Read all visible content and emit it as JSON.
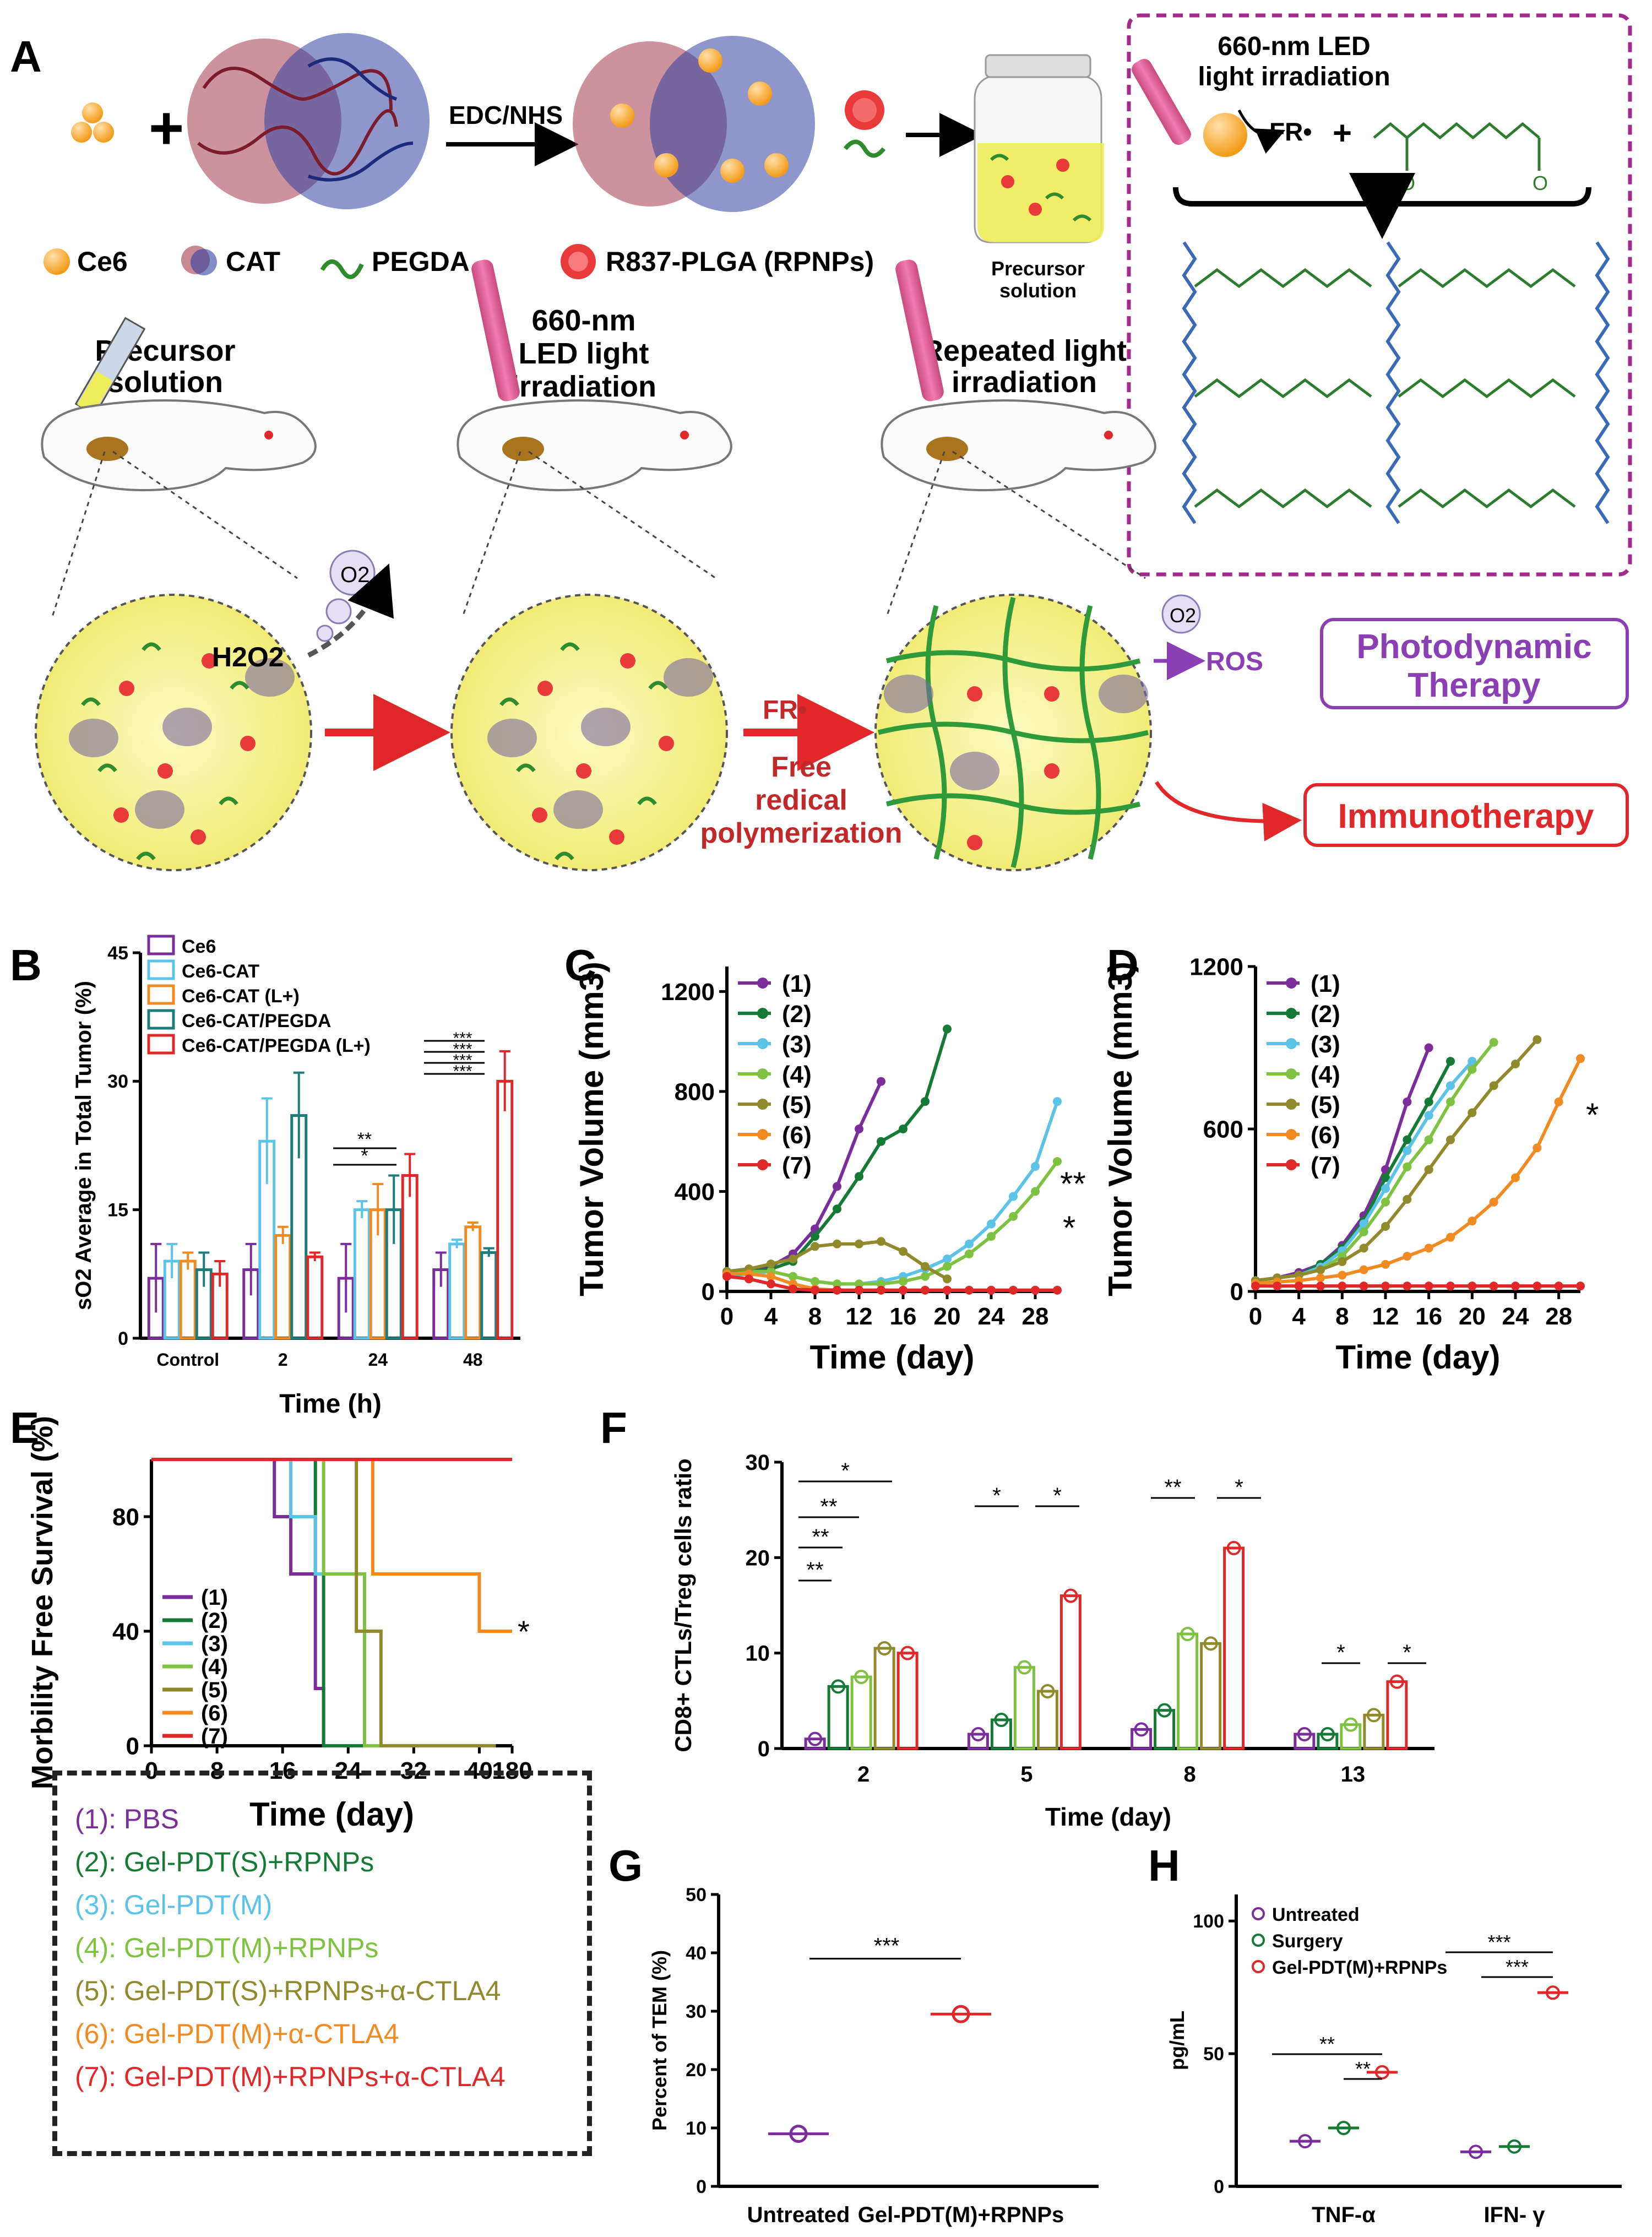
{
  "panels": {
    "A": "A",
    "B": "B",
    "C": "C",
    "D": "D",
    "E": "E",
    "F": "F",
    "G": "G",
    "H": "H"
  },
  "colors": {
    "g1": "#7b2e9b",
    "g2": "#157a35",
    "g3": "#5cc3e8",
    "g4": "#7fc242",
    "g5": "#8f8a2b",
    "g6": "#f28a22",
    "g7": "#e0282a",
    "ce6": "#7b2e9b",
    "cat": "#5cc3e8",
    "catL": "#f28a22",
    "pegda": "#1c7d7a",
    "pegdaL": "#e0282a",
    "magenta": "#a12a8a",
    "green": "#2e8b2e",
    "blue": "#3a6ab5",
    "yellow": "#f4f19a"
  },
  "panelA": {
    "reagent": "EDC/NHS",
    "legend": {
      "ce6": "Ce6",
      "cat": "CAT",
      "pegda": "PEGDA",
      "rpnps": "R837-PLGA (RPNPs)"
    },
    "precursor_vial": "Precursor solution",
    "step1": "Precursor solution",
    "step2": "660-nm LED light irradiation",
    "step3": "Repeated light irradiation",
    "inset_title": "660-nm LED light irradiation",
    "fr": "FR•",
    "h2o2": "H2O2",
    "o2": "O2",
    "polymerization": "Free redical polymerization",
    "ros": "ROS",
    "pdt": "Photodynamic Therapy",
    "immuno": "Immunotherapy"
  },
  "chart_data": [
    {
      "id": "B",
      "type": "bar",
      "ylabel": "sO2 Average in Total Tumor (%)",
      "xlabel": "Time (h)",
      "categories": [
        "Control",
        "2",
        "24",
        "48"
      ],
      "ylim": [
        0,
        45
      ],
      "yticks": [
        0,
        15,
        30,
        45
      ],
      "series": [
        {
          "name": "Ce6",
          "values": [
            7,
            8,
            7,
            8
          ],
          "err": [
            4,
            3,
            4,
            2
          ]
        },
        {
          "name": "Ce6-CAT",
          "values": [
            9,
            23,
            15,
            11
          ],
          "err": [
            2,
            5,
            1,
            0.5
          ]
        },
        {
          "name": "Ce6-CAT (L+)",
          "values": [
            9,
            12,
            15,
            13
          ],
          "err": [
            1,
            1,
            3,
            0.5
          ]
        },
        {
          "name": "Ce6-CAT/PEGDA",
          "values": [
            8,
            26,
            15,
            10
          ],
          "err": [
            2,
            5,
            4,
            0.5
          ]
        },
        {
          "name": "Ce6-CAT/PEGDA (L+)",
          "values": [
            7.5,
            9.5,
            19,
            30
          ],
          "err": [
            1.5,
            0.5,
            2.5,
            3.5
          ]
        }
      ],
      "sig": [
        "**",
        "*",
        "***",
        "***",
        "***",
        "***"
      ]
    },
    {
      "id": "C",
      "type": "line",
      "title": "",
      "ylabel": "Tumor Volume (mm3)",
      "xlabel": "Time (day)",
      "xlim": [
        0,
        30
      ],
      "ylim": [
        0,
        1300
      ],
      "xticks": [
        0,
        4,
        8,
        12,
        16,
        20,
        24,
        28
      ],
      "yticks": [
        0,
        400,
        800,
        1200
      ],
      "series": [
        {
          "name": "(1)",
          "x": [
            0,
            2,
            4,
            6,
            8,
            10,
            12,
            14
          ],
          "y": [
            80,
            90,
            100,
            150,
            250,
            420,
            650,
            840
          ]
        },
        {
          "name": "(2)",
          "x": [
            0,
            2,
            4,
            6,
            8,
            10,
            12,
            14,
            16,
            18,
            20
          ],
          "y": [
            70,
            80,
            90,
            120,
            220,
            330,
            460,
            600,
            650,
            760,
            1050
          ]
        },
        {
          "name": "(3)",
          "x": [
            0,
            2,
            4,
            6,
            8,
            10,
            12,
            14,
            16,
            18,
            20,
            22,
            24,
            26,
            28,
            30
          ],
          "y": [
            60,
            70,
            80,
            60,
            40,
            30,
            30,
            40,
            60,
            90,
            130,
            190,
            270,
            380,
            500,
            760
          ]
        },
        {
          "name": "(4)",
          "x": [
            0,
            2,
            4,
            6,
            8,
            10,
            12,
            14,
            16,
            18,
            20,
            22,
            24,
            26,
            28,
            30
          ],
          "y": [
            80,
            80,
            80,
            60,
            40,
            30,
            30,
            30,
            40,
            60,
            100,
            150,
            220,
            300,
            400,
            520
          ]
        },
        {
          "name": "(5)",
          "x": [
            0,
            2,
            4,
            6,
            8,
            10,
            12,
            14,
            16,
            18,
            20
          ],
          "y": [
            80,
            90,
            110,
            130,
            180,
            190,
            190,
            200,
            160,
            100,
            50
          ]
        },
        {
          "name": "(6)",
          "x": [
            0,
            2,
            4,
            6,
            8,
            10,
            12,
            14,
            16,
            18,
            20,
            22,
            24,
            26,
            28,
            30
          ],
          "y": [
            70,
            70,
            60,
            30,
            10,
            5,
            5,
            5,
            5,
            5,
            5,
            5,
            5,
            5,
            5,
            5
          ]
        },
        {
          "name": "(7)",
          "x": [
            0,
            2,
            4,
            6,
            8,
            10,
            12,
            14,
            16,
            18,
            20,
            22,
            24,
            26,
            28,
            30
          ],
          "y": [
            60,
            50,
            30,
            10,
            5,
            5,
            5,
            5,
            5,
            5,
            5,
            5,
            5,
            5,
            5,
            5
          ]
        }
      ],
      "sig": [
        "**",
        "*"
      ]
    },
    {
      "id": "D",
      "type": "line",
      "ylabel": "Tumor Volume (mm3)",
      "xlabel": "Time (day)",
      "xlim": [
        0,
        30
      ],
      "ylim": [
        0,
        1200
      ],
      "xticks": [
        0,
        4,
        8,
        12,
        16,
        20,
        24,
        28
      ],
      "yticks": [
        0,
        600,
        1200
      ],
      "series": [
        {
          "name": "(1)",
          "x": [
            0,
            2,
            4,
            6,
            8,
            10,
            12,
            14,
            16
          ],
          "y": [
            40,
            50,
            70,
            100,
            170,
            280,
            450,
            700,
            900
          ]
        },
        {
          "name": "(2)",
          "x": [
            0,
            2,
            4,
            6,
            8,
            10,
            12,
            14,
            16,
            18
          ],
          "y": [
            40,
            50,
            60,
            100,
            160,
            260,
            420,
            560,
            700,
            850
          ]
        },
        {
          "name": "(3)",
          "x": [
            0,
            2,
            4,
            6,
            8,
            10,
            12,
            14,
            16,
            18,
            20
          ],
          "y": [
            40,
            50,
            60,
            90,
            150,
            250,
            380,
            520,
            650,
            760,
            850
          ]
        },
        {
          "name": "(4)",
          "x": [
            0,
            2,
            4,
            6,
            8,
            10,
            12,
            14,
            16,
            18,
            20,
            22
          ],
          "y": [
            40,
            50,
            60,
            80,
            130,
            220,
            330,
            460,
            560,
            700,
            820,
            920
          ]
        },
        {
          "name": "(5)",
          "x": [
            0,
            2,
            4,
            6,
            8,
            10,
            12,
            14,
            16,
            18,
            20,
            22,
            24,
            26
          ],
          "y": [
            40,
            50,
            60,
            80,
            110,
            160,
            240,
            340,
            450,
            560,
            660,
            760,
            840,
            930
          ]
        },
        {
          "name": "(6)",
          "x": [
            0,
            2,
            4,
            6,
            8,
            10,
            12,
            14,
            16,
            18,
            20,
            22,
            24,
            26,
            28,
            30
          ],
          "y": [
            30,
            35,
            40,
            50,
            60,
            80,
            100,
            130,
            160,
            200,
            260,
            330,
            420,
            530,
            700,
            860
          ]
        },
        {
          "name": "(7)",
          "x": [
            0,
            2,
            4,
            6,
            8,
            10,
            12,
            14,
            16,
            18,
            20,
            22,
            24,
            26,
            28,
            30
          ],
          "y": [
            20,
            20,
            20,
            20,
            20,
            20,
            20,
            20,
            20,
            20,
            20,
            20,
            20,
            20,
            20,
            20
          ]
        }
      ],
      "sig": [
        "*"
      ]
    },
    {
      "id": "E",
      "type": "line",
      "ylabel": "Morbility Free Survival (%)",
      "xlabel": "Time (day)",
      "xlim": [
        0,
        44
      ],
      "ylim": [
        0,
        100
      ],
      "xticks": [
        "0",
        "8",
        "16",
        "24",
        "32",
        "40",
        "180"
      ],
      "yticks": [
        0,
        40,
        80
      ],
      "series": [
        {
          "name": "(1)",
          "x": [
            0,
            15,
            15,
            17,
            17,
            20,
            20,
            21,
            21,
            42
          ],
          "y": [
            100,
            100,
            80,
            80,
            60,
            60,
            20,
            20,
            0,
            0
          ]
        },
        {
          "name": "(2)",
          "x": [
            0,
            20,
            20,
            21,
            21,
            42
          ],
          "y": [
            100,
            100,
            60,
            60,
            0,
            0
          ]
        },
        {
          "name": "(3)",
          "x": [
            0,
            17,
            17,
            20,
            20,
            26,
            26,
            42
          ],
          "y": [
            100,
            100,
            80,
            80,
            60,
            60,
            0,
            0
          ]
        },
        {
          "name": "(4)",
          "x": [
            0,
            21,
            21,
            26,
            26,
            42
          ],
          "y": [
            100,
            100,
            60,
            60,
            0,
            0
          ]
        },
        {
          "name": "(5)",
          "x": [
            0,
            25,
            25,
            28,
            28,
            42
          ],
          "y": [
            100,
            100,
            40,
            40,
            0,
            0
          ]
        },
        {
          "name": "(6)",
          "x": [
            0,
            27,
            27,
            40,
            40,
            44
          ],
          "y": [
            100,
            100,
            60,
            60,
            40,
            40
          ]
        },
        {
          "name": "(7)",
          "x": [
            0,
            44
          ],
          "y": [
            100,
            100
          ]
        }
      ],
      "sig": [
        "*"
      ]
    },
    {
      "id": "F",
      "type": "bar",
      "ylabel": "CD8+ CTLs/Treg cells ratio",
      "xlabel": "Time (day)",
      "categories": [
        "2",
        "5",
        "8",
        "13"
      ],
      "ylim": [
        0,
        30
      ],
      "yticks": [
        0,
        10,
        20,
        30
      ],
      "series": [
        {
          "name": "(1)",
          "values": [
            1,
            1.5,
            2,
            1.5
          ]
        },
        {
          "name": "(2)",
          "values": [
            6.5,
            3,
            4,
            1.5
          ]
        },
        {
          "name": "(3)",
          "values": [
            0,
            0,
            0,
            0
          ]
        },
        {
          "name": "(4)",
          "values": [
            7.5,
            8.5,
            12,
            2.5
          ]
        },
        {
          "name": "(5)",
          "values": [
            10.5,
            6,
            11,
            3.5
          ]
        },
        {
          "name": "(6)",
          "values": [
            0,
            0,
            0,
            0
          ]
        },
        {
          "name": "(7)",
          "values": [
            10,
            16,
            21,
            7
          ]
        }
      ],
      "sig": [
        "*",
        "**",
        "**",
        "**",
        "*",
        "*",
        "**",
        "*",
        "*",
        "*"
      ]
    },
    {
      "id": "G",
      "type": "scatter",
      "ylabel": "Percent of TEM (%)",
      "categories": [
        "Untreated",
        "Gel-PDT(M)+RPNPs"
      ],
      "ylim": [
        0,
        50
      ],
      "yticks": [
        0,
        10,
        20,
        30,
        40,
        50
      ],
      "values": [
        9,
        29.5
      ],
      "sig": "***"
    },
    {
      "id": "H",
      "type": "scatter",
      "ylabel": "pg/mL",
      "categories": [
        "TNF-α",
        "IFN- γ"
      ],
      "ylim": [
        0,
        110
      ],
      "yticks": [
        0,
        50,
        100
      ],
      "series": [
        {
          "name": "Untreated",
          "values": [
            17,
            13
          ]
        },
        {
          "name": "Surgery",
          "values": [
            22,
            15
          ]
        },
        {
          "name": "Gel-PDT(M)+RPNPs",
          "values": [
            43,
            73
          ]
        }
      ],
      "sig": [
        "**",
        "**",
        "***",
        "***"
      ]
    }
  ],
  "groups": [
    {
      "label": "(1): PBS"
    },
    {
      "label": "(2): Gel-PDT(S)+RPNPs"
    },
    {
      "label": "(3): Gel-PDT(M)"
    },
    {
      "label": "(4): Gel-PDT(M)+RPNPs"
    },
    {
      "label": "(5): Gel-PDT(S)+RPNPs+α-CTLA4"
    },
    {
      "label": "(6): Gel-PDT(M)+α-CTLA4"
    },
    {
      "label": "(7): Gel-PDT(M)+RPNPs+α-CTLA4"
    }
  ]
}
